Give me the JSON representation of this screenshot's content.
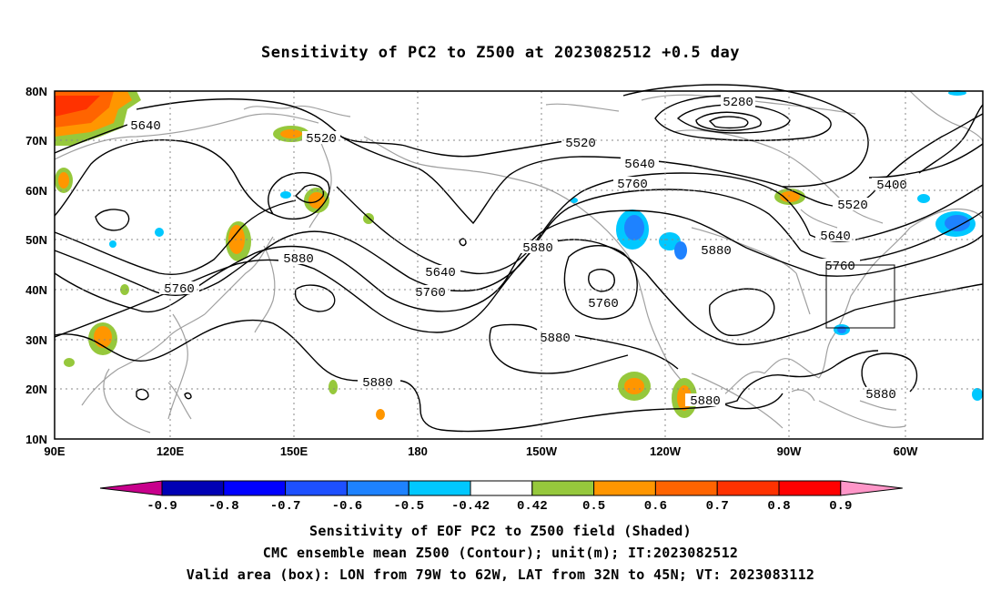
{
  "title": "Sensitivity of PC2 to Z500 at 2023082512 +0.5 day",
  "lat_labels": [
    "80N",
    "70N",
    "60N",
    "50N",
    "40N",
    "30N",
    "20N",
    "10N"
  ],
  "lon_labels": [
    "90E",
    "120E",
    "150E",
    "180",
    "150W",
    "120W",
    "90W",
    "60W"
  ],
  "contour_labels": [
    {
      "text": "5280"
    },
    {
      "text": "5640"
    },
    {
      "text": "5520"
    },
    {
      "text": "5520"
    },
    {
      "text": "5640"
    },
    {
      "text": "5760"
    },
    {
      "text": "5400"
    },
    {
      "text": "5520"
    },
    {
      "text": "5640"
    },
    {
      "text": "5760"
    },
    {
      "text": "5880"
    },
    {
      "text": "5880"
    },
    {
      "text": "5640"
    },
    {
      "text": "5760"
    },
    {
      "text": "5760"
    },
    {
      "text": "5880"
    },
    {
      "text": "5760"
    },
    {
      "text": "5880"
    },
    {
      "text": "5880"
    },
    {
      "text": "5880"
    },
    {
      "text": "5880"
    }
  ],
  "colorbar": {
    "labels": [
      "-0.9",
      "-0.8",
      "-0.7",
      "-0.6",
      "-0.5",
      "-0.42",
      "0.42",
      "0.5",
      "0.6",
      "0.7",
      "0.8",
      "0.9"
    ],
    "colors": [
      "#c8008c",
      "#0000b4",
      "#0000ff",
      "#1e50ff",
      "#1e82ff",
      "#00c8ff",
      "#ffffff",
      "#96c83c",
      "#ff9600",
      "#ff6400",
      "#ff3200",
      "#ff0000",
      "#ff96c8"
    ]
  },
  "footer": {
    "line1": "Sensitivity of EOF PC2 to Z500 field (Shaded)",
    "line2": "CMC ensemble mean Z500 (Contour); unit(m); IT:2023082512",
    "line3": "Valid area (box): LON from 79W to 62W, LAT from 32N to 45N; VT: 2023083112"
  }
}
